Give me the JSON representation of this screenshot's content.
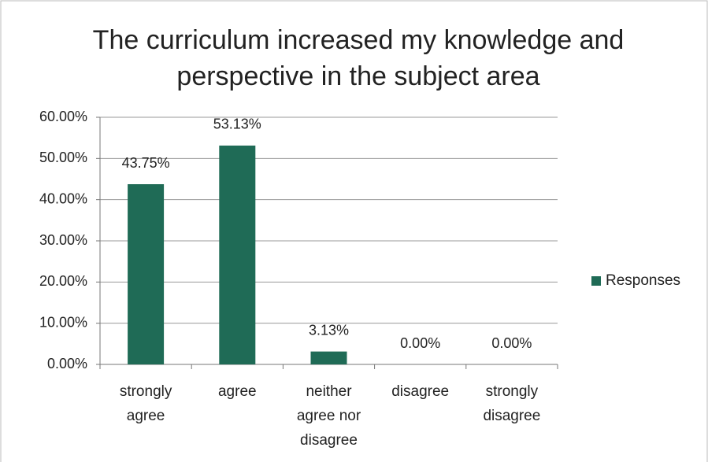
{
  "chart_data": {
    "type": "bar",
    "title": "The curriculum increased my knowledge and perspective in the subject area",
    "categories": [
      "strongly agree",
      "agree",
      "neither agree nor disagree",
      "disagree",
      "strongly disagree"
    ],
    "series": [
      {
        "name": "Responses",
        "color": "#1f6b56",
        "values": [
          43.75,
          53.13,
          3.13,
          0,
          0
        ],
        "value_labels": [
          "43.75%",
          "53.13%",
          "3.13%",
          "0.00%",
          "0.00%"
        ]
      }
    ],
    "ylim": [
      0,
      60
    ],
    "yticks": [
      {
        "value": 0,
        "label": "0.00%"
      },
      {
        "value": 10,
        "label": "10.00%"
      },
      {
        "value": 20,
        "label": "20.00%"
      },
      {
        "value": 30,
        "label": "30.00%"
      },
      {
        "value": 40,
        "label": "40.00%"
      },
      {
        "value": 50,
        "label": "50.00%"
      },
      {
        "value": 60,
        "label": "60.00%"
      }
    ],
    "grid": true,
    "legend": "right"
  }
}
